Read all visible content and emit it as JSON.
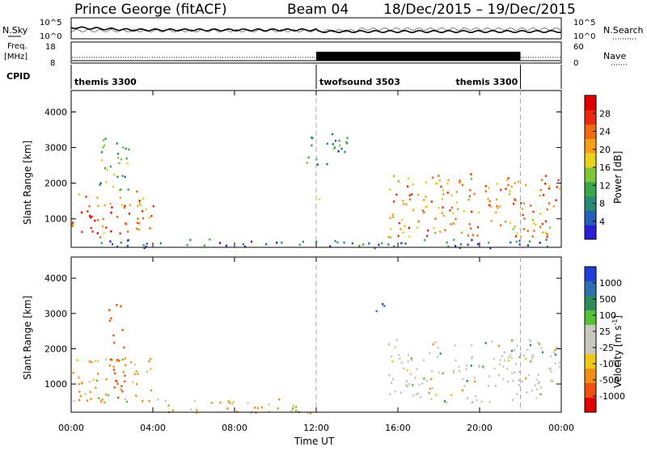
{
  "header": {
    "station": "Prince George (fitACF)",
    "beam": "Beam 04",
    "date_range": "18/Dec/2015 – 19/Dec/2015"
  },
  "summary_panel": {
    "left_label": "N.Sky",
    "right_label": "N.Search",
    "left_ticks": [
      "10^5",
      "10^0"
    ],
    "right_ticks": [
      "10^5",
      "10^0"
    ]
  },
  "freq_panel": {
    "left_label_line1": "Freq.",
    "left_label_line2": "[MHz]",
    "right_label": "Nave",
    "left_ticks": [
      "18",
      "8"
    ],
    "right_ticks": [
      "60",
      "0"
    ]
  },
  "cpid": {
    "label": "CPID",
    "segments": [
      {
        "name": "themis 3300",
        "start_hour": 0,
        "end_hour": 12
      },
      {
        "name": "twofsound 3503",
        "start_hour": 12,
        "end_hour": 22
      },
      {
        "name": "themis 3300",
        "start_hour": 22,
        "end_hour": 24
      }
    ]
  },
  "chart_data": [
    {
      "type": "heatmap",
      "name": "power",
      "ylabel": "Slant Range [km]",
      "yticks": [
        1000,
        2000,
        3000,
        4000
      ],
      "ylim": [
        200,
        4600
      ],
      "xlim": [
        0,
        24
      ],
      "colorbar_label": "Power [dB]",
      "colorbar_ticks": [
        4,
        8,
        12,
        16,
        20,
        24,
        28
      ],
      "colorbar_range": [
        0,
        32
      ],
      "colorscale": [
        "#2a1fd6",
        "#2560b8",
        "#2a8a78",
        "#3aa84a",
        "#7ec63a",
        "#e8d21c",
        "#f5a018",
        "#f06a14",
        "#e82a10",
        "#e00000"
      ],
      "echo_regions": [
        {
          "hours": [
            0,
            4
          ],
          "range_km": [
            500,
            1800
          ],
          "level_db": 24
        },
        {
          "hours": [
            1,
            2.8
          ],
          "range_km": [
            1800,
            3300
          ],
          "level_db": 12
        },
        {
          "hours": [
            12,
            12.5
          ],
          "range_km": [
            1500,
            1700
          ],
          "level_db": 18
        },
        {
          "hours": [
            11.5,
            13.5
          ],
          "range_km": [
            2500,
            3500
          ],
          "level_db": 8
        },
        {
          "hours": [
            15.5,
            23.9
          ],
          "range_km": [
            500,
            2300
          ],
          "level_db": 22
        },
        {
          "hours": [
            1,
            23.9
          ],
          "range_km": [
            200,
            450
          ],
          "level_db": 6
        }
      ]
    },
    {
      "type": "heatmap",
      "name": "velocity",
      "ylabel": "Slant Range [km]",
      "xlabel": "Time UT",
      "xticks": [
        "00:00",
        "04:00",
        "08:00",
        "12:00",
        "16:00",
        "20:00",
        "00:00"
      ],
      "xtick_hours": [
        0,
        4,
        8,
        12,
        16,
        20,
        24
      ],
      "yticks": [
        1000,
        2000,
        3000,
        4000
      ],
      "ylim": [
        200,
        4600
      ],
      "xlim": [
        0,
        24
      ],
      "colorbar_label": "Velocity [m s-1]",
      "colorbar_label_base": "Velocity [m s",
      "colorbar_label_exp": "-1",
      "colorbar_label_end": "]",
      "colorbar_ticks": [
        1000,
        500,
        100,
        25,
        -25,
        -100,
        -500,
        -1000
      ],
      "colorscale": [
        "#1f3fd6",
        "#2e6fb0",
        "#2e8a5a",
        "#56c036",
        "#c8c8c0",
        "#c8c8c0",
        "#f0c81c",
        "#f09018",
        "#f05010",
        "#e00000"
      ],
      "dominant_color": "#c8c8c0",
      "echo_regions": [
        {
          "hours": [
            0,
            4
          ],
          "range_km": [
            500,
            1800
          ],
          "velocity": -100
        },
        {
          "hours": [
            1.8,
            2.6
          ],
          "range_km": [
            600,
            3300
          ],
          "velocity": -500
        },
        {
          "hours": [
            15.5,
            23.9
          ],
          "range_km": [
            500,
            2300
          ],
          "velocity": 0
        },
        {
          "hours": [
            14.8,
            15.3
          ],
          "range_km": [
            2800,
            3300
          ],
          "velocity": 700
        },
        {
          "hours": [
            4,
            12
          ],
          "range_km": [
            200,
            600
          ],
          "velocity": -100
        }
      ]
    }
  ]
}
